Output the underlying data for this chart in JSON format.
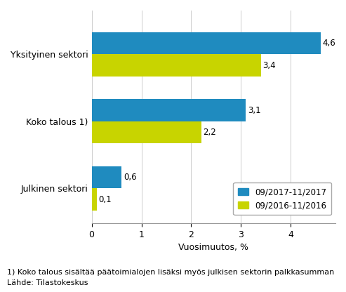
{
  "categories": [
    "Julkinen sektori",
    "Koko talous 1)",
    "Yksityinen sektori"
  ],
  "series": [
    {
      "label": "09/2017-11/2017",
      "values": [
        0.6,
        3.1,
        4.6
      ],
      "color": "#1F8BBF"
    },
    {
      "label": "09/2016-11/2016",
      "values": [
        0.1,
        2.2,
        3.4
      ],
      "color": "#C8D400"
    }
  ],
  "xlabel": "Vuosimuutos, %",
  "xlim": [
    0,
    4.9
  ],
  "xticks": [
    0,
    1,
    2,
    3,
    4
  ],
  "footnote1": "1) Koko talous sisältää päätoimialojen lisäksi myös julkisen sektorin palkkasumman",
  "footnote2": "Lähde: Tilastokeskus",
  "bar_height": 0.38,
  "value_fontsize": 8.5,
  "label_fontsize": 9,
  "tick_fontsize": 9,
  "legend_fontsize": 8.5,
  "footnote_fontsize": 8,
  "background_color": "#FFFFFF"
}
